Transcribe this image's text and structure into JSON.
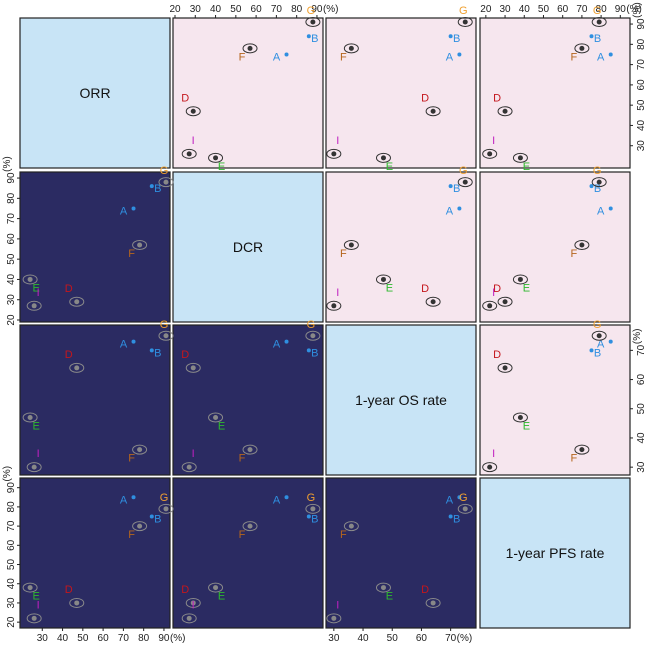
{
  "chart_data": {
    "type": "scatter",
    "variables": [
      "ORR",
      "DCR",
      "1-year OS rate",
      "1-year PFS rate"
    ],
    "unit_label": "(%)",
    "axes": [
      {
        "ticks": [
          30,
          40,
          50,
          60,
          70,
          80,
          90
        ],
        "range": [
          20,
          92
        ]
      },
      {
        "ticks": [
          20,
          30,
          40,
          50,
          60,
          70,
          80,
          90
        ],
        "range": [
          20,
          92
        ]
      },
      {
        "ticks": [
          30,
          40,
          50,
          60,
          70
        ],
        "range": [
          28,
          78
        ]
      },
      {
        "ticks": [
          20,
          30,
          40,
          50,
          60,
          70,
          80,
          90
        ],
        "range": [
          18,
          94
        ]
      }
    ],
    "points": [
      {
        "label": "A",
        "values": [
          75,
          75,
          73,
          85
        ],
        "color": "#2f8fe0"
      },
      {
        "label": "B",
        "values": [
          84,
          86,
          70,
          75
        ],
        "color": "#2f8fe0"
      },
      {
        "label": "D",
        "values": [
          47,
          29,
          64,
          30
        ],
        "color": "#c4161c"
      },
      {
        "label": "E",
        "values": [
          24,
          40,
          47,
          38
        ],
        "color": "#2eb82e"
      },
      {
        "label": "F",
        "values": [
          78,
          57,
          36,
          70
        ],
        "color": "#b5651d"
      },
      {
        "label": "G",
        "values": [
          91,
          88,
          75,
          79
        ],
        "color": "#f0a030"
      },
      {
        "label": "I",
        "values": [
          26,
          27,
          30,
          22
        ],
        "color": "#c020c0"
      }
    ],
    "xlabel": "",
    "ylabel": "",
    "grid": false,
    "legend": "none"
  }
}
